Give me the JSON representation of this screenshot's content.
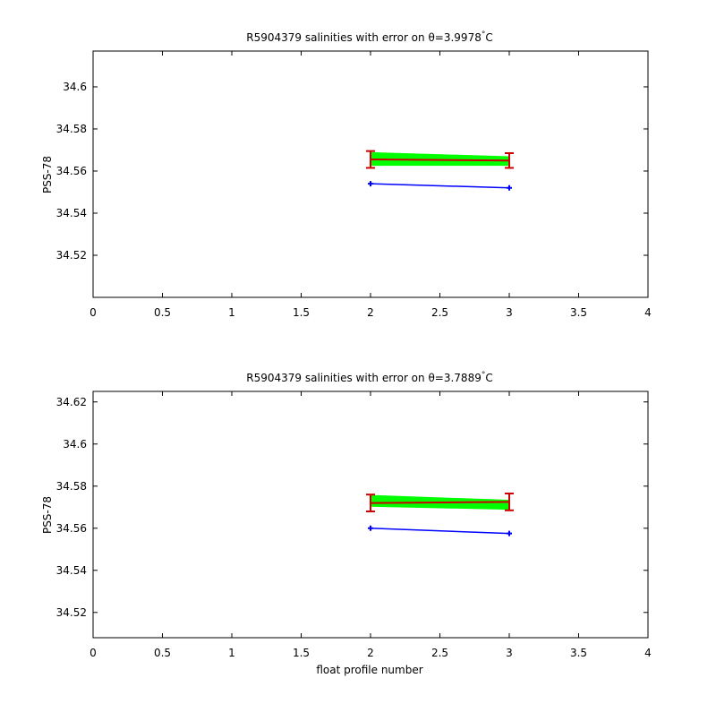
{
  "chart_data": [
    {
      "type": "line",
      "title": "R5904379 salinities with error on θ=3.9978",
      "title_unit_deg": "°",
      "title_unit_letter": "C",
      "xlabel": "",
      "ylabel": "PSS-78",
      "xlim": [
        0,
        4
      ],
      "ylim": [
        34.5,
        34.617
      ],
      "xticks": [
        "0",
        "0.5",
        "1",
        "1.5",
        "2",
        "2.5",
        "3",
        "3.5",
        "4"
      ],
      "xtick_values": [
        0,
        0.5,
        1,
        1.5,
        2,
        2.5,
        3,
        3.5,
        4
      ],
      "yticks": [
        "34.52",
        "34.54",
        "34.56",
        "34.58",
        "34.6"
      ],
      "ytick_values": [
        34.52,
        34.54,
        34.56,
        34.58,
        34.6
      ],
      "series": [
        {
          "x": [
            2,
            3
          ],
          "y": [
            34.554,
            34.552
          ],
          "color": "#0000ff",
          "marker": "plus"
        },
        {
          "x": [
            2,
            3
          ],
          "y": [
            34.5655,
            34.565
          ],
          "color": "#cc0000",
          "error": [
            0.004,
            0.0035
          ]
        }
      ],
      "band": {
        "x": [
          2,
          3
        ],
        "upper": [
          34.569,
          34.567
        ],
        "lower": [
          34.5625,
          34.5625
        ],
        "color": "#00ff00"
      }
    },
    {
      "type": "line",
      "title": "R5904379 salinities with error on θ=3.7889",
      "title_unit_deg": "°",
      "title_unit_letter": "C",
      "xlabel": "float profile number",
      "ylabel": "PSS-78",
      "xlim": [
        0,
        4
      ],
      "ylim": [
        34.508,
        34.625
      ],
      "xticks": [
        "0",
        "0.5",
        "1",
        "1.5",
        "2",
        "2.5",
        "3",
        "3.5",
        "4"
      ],
      "xtick_values": [
        0,
        0.5,
        1,
        1.5,
        2,
        2.5,
        3,
        3.5,
        4
      ],
      "yticks": [
        "34.52",
        "34.54",
        "34.56",
        "34.58",
        "34.6",
        "34.62"
      ],
      "ytick_values": [
        34.52,
        34.54,
        34.56,
        34.58,
        34.6,
        34.62
      ],
      "series": [
        {
          "x": [
            2,
            3
          ],
          "y": [
            34.56,
            34.5575
          ],
          "color": "#0000ff",
          "marker": "plus"
        },
        {
          "x": [
            2,
            3
          ],
          "y": [
            34.572,
            34.5725
          ],
          "color": "#cc0000",
          "error": [
            0.004,
            0.004
          ]
        }
      ],
      "band": {
        "x": [
          2,
          3
        ],
        "upper": [
          34.5758,
          34.5735
        ],
        "lower": [
          34.5702,
          34.5688
        ],
        "color": "#00ff00"
      }
    }
  ]
}
